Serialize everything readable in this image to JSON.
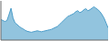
{
  "chart_data": {
    "type": "area",
    "x": [
      0,
      1,
      2,
      3,
      4,
      5,
      6,
      7,
      8,
      9,
      10,
      11,
      12,
      13,
      14,
      15,
      16,
      17,
      18,
      19,
      20,
      21,
      22,
      23,
      24,
      25,
      26,
      27,
      28,
      29,
      30,
      31,
      32,
      33,
      34,
      35,
      36,
      37,
      38,
      39,
      40,
      41,
      42,
      43,
      44,
      45,
      46,
      47,
      48,
      49,
      50,
      51,
      52,
      53
    ],
    "values": [
      62,
      60,
      58,
      60,
      72,
      85,
      65,
      55,
      52,
      48,
      45,
      43,
      40,
      38,
      37,
      36,
      37,
      38,
      39,
      38,
      37,
      38,
      39,
      40,
      41,
      42,
      44,
      46,
      48,
      52,
      56,
      60,
      64,
      68,
      70,
      72,
      74,
      78,
      80,
      76,
      78,
      82,
      84,
      80,
      82,
      85,
      88,
      85,
      82,
      78,
      72,
      65,
      55,
      45
    ],
    "color": "#4a9cc8",
    "xlim": [
      0,
      53
    ],
    "ylim": [
      20,
      100
    ],
    "tick_labels": false
  }
}
